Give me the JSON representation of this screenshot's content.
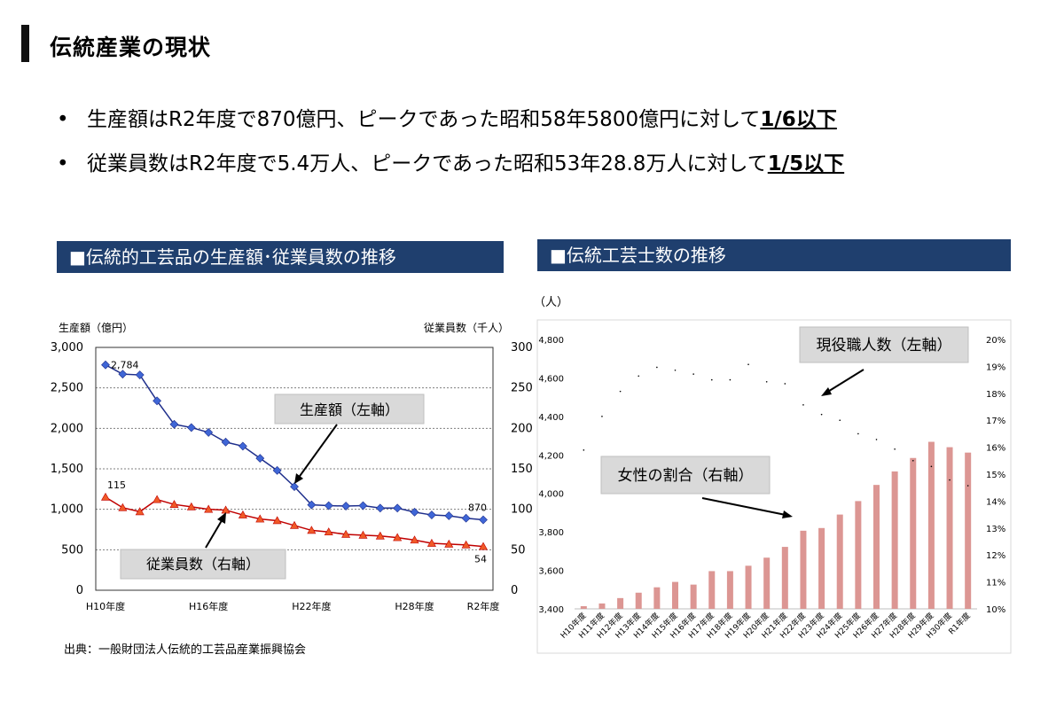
{
  "header": {
    "title": "伝統産業の現状"
  },
  "bullets": [
    {
      "text": "生産額はR2年度で870億円、ピークであった昭和58年5800億円に対して",
      "emphasis": "1/6以下"
    },
    {
      "text": "従業員数はR2年度で5.4万人、ピークであった昭和53年28.8万人に対して",
      "emphasis": "1/5以下"
    }
  ],
  "panels": {
    "left_title": "■伝統的工芸品の生産額･従業員数の推移",
    "right_title": "■伝統工芸士数の推移"
  },
  "source": "出典：一般財団法人伝統的工芸品産業振興協会",
  "colors": {
    "header_bg": "#1f3f6e",
    "production_line": "#1f2f8c",
    "production_marker": "#3f66d6",
    "employee_line": "#c00000",
    "employee_marker": "#f05a28",
    "craftsman_line": "#2e75b6",
    "female_bar": "#dc9693"
  },
  "chart_data": [
    {
      "type": "line",
      "x_tick_labels": [
        "H10年度",
        "H16年度",
        "H22年度",
        "H28年度",
        "R2年度"
      ],
      "left_axis_label": "生産額（億円）",
      "right_axis_label": "従業員数（千人）",
      "y_left_ticks": [
        "0",
        "500",
        "1,000",
        "1,500",
        "2,000",
        "2,500",
        "3,000"
      ],
      "y_right_ticks": [
        "0",
        "50",
        "100",
        "150",
        "200",
        "250",
        "300"
      ],
      "ylim_left": [
        0,
        3000
      ],
      "ylim_right": [
        0,
        300
      ],
      "grid": true,
      "series": [
        {
          "values": [
            2784,
            2670,
            2660,
            2340,
            2050,
            2010,
            1950,
            1830,
            1780,
            1630,
            1480,
            1280,
            1055,
            1045,
            1040,
            1045,
            1015,
            1015,
            965,
            930,
            920,
            890,
            870
          ],
          "axis": "left",
          "first_label": "2,784",
          "last_label": "870",
          "annotation": "生産額（左軸）"
        },
        {
          "values": [
            115,
            102,
            97,
            112,
            106,
            103,
            100,
            99,
            93,
            88,
            86,
            80,
            74,
            72,
            69,
            68,
            67,
            65,
            62,
            58,
            57,
            56,
            54
          ],
          "axis": "right",
          "first_label": "115",
          "last_label": "54",
          "annotation": "従業員数（右軸）"
        }
      ]
    },
    {
      "type": "bar+line",
      "unit_label": "（人）",
      "categories": [
        "H10年度",
        "H11年度",
        "H12年度",
        "H13年度",
        "H14年度",
        "H15年度",
        "H16年度",
        "H17年度",
        "H18年度",
        "H19年度",
        "H20年度",
        "H21年度",
        "H22年度",
        "H23年度",
        "H24年度",
        "H25年度",
        "H26年度",
        "H27年度",
        "H28年度",
        "H29年度",
        "H30年度",
        "R1年度"
      ],
      "y_left_ticks": [
        "3,400",
        "3,600",
        "3,800",
        "4,000",
        "4,200",
        "4,400",
        "4,600",
        "4,800"
      ],
      "y_right_ticks": [
        "10%",
        "11%",
        "12%",
        "13%",
        "14%",
        "15%",
        "16%",
        "17%",
        "18%",
        "19%",
        "20%"
      ],
      "ylim_left": [
        3400,
        4800
      ],
      "ylim_right": [
        10,
        20
      ],
      "grid": false,
      "series": [
        {
          "kind": "line",
          "axis": "left",
          "annotation": "現役職人数（左軸）",
          "values": [
            4225,
            4400,
            4530,
            4610,
            4655,
            4640,
            4620,
            4590,
            4590,
            4670,
            4580,
            4570,
            4460,
            4410,
            4380,
            4310,
            4280,
            4230,
            4170,
            4140,
            4070,
            4040
          ]
        },
        {
          "kind": "bar",
          "axis": "right",
          "annotation": "女性の割合（右軸）",
          "values": [
            10.1,
            10.2,
            10.4,
            10.6,
            10.8,
            11.0,
            10.9,
            11.4,
            11.4,
            11.6,
            11.9,
            12.3,
            12.9,
            13.0,
            13.5,
            14.0,
            14.6,
            15.1,
            15.6,
            16.2,
            16.0,
            15.8
          ]
        }
      ]
    }
  ]
}
